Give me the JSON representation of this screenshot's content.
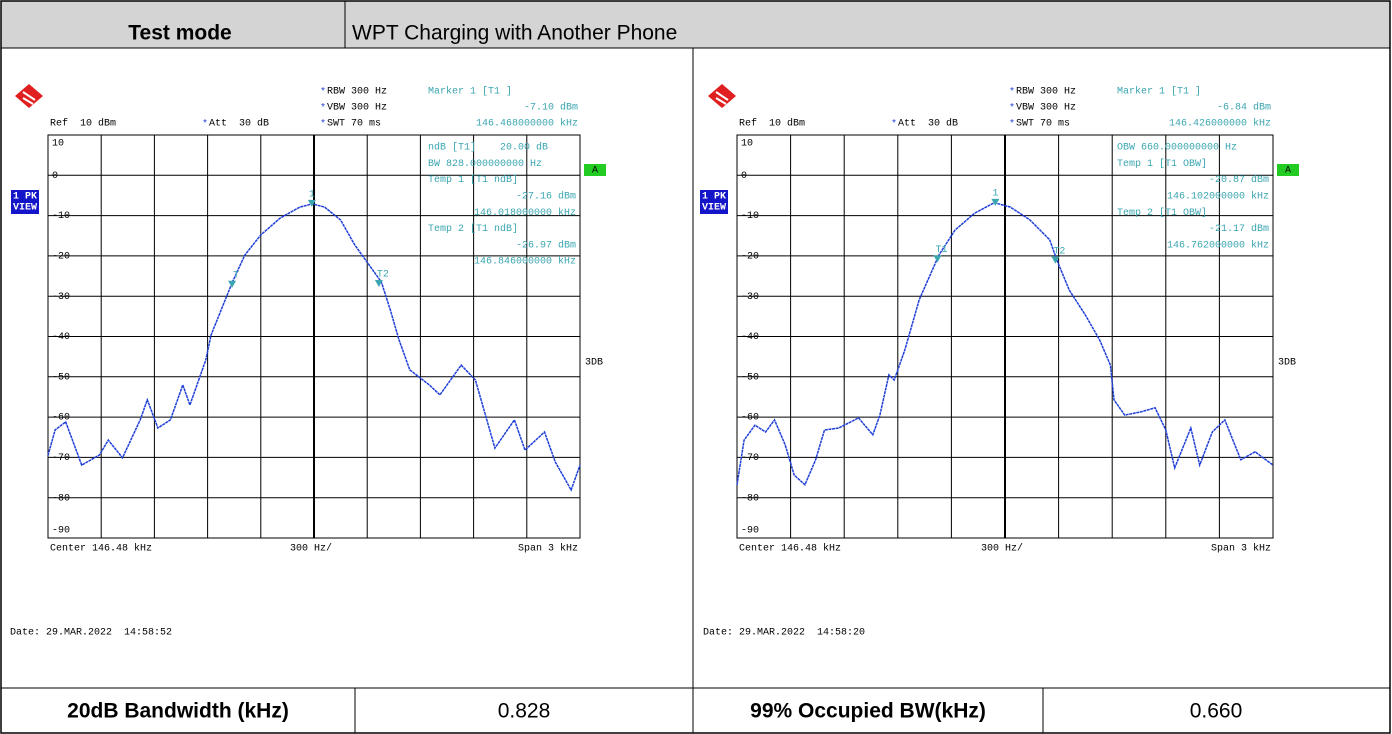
{
  "header": {
    "label": "Test mode",
    "value": "WPT Charging with Another Phone"
  },
  "plots": [
    {
      "rbw": "RBW 300 Hz",
      "vbw": "VBW 300 Hz",
      "swt": "SWT 70 ms",
      "ref": "Ref  10 dBm",
      "att": "Att  30 dB",
      "marker_title": "Marker 1 [T1 ]",
      "marker_level": "-7.10 dBm",
      "marker_freq": "146.468000000 kHz",
      "readout": [
        "ndB [T1]    20.00 dB",
        "BW 828.000000000 Hz",
        "Temp 1 [T1 ndB]",
        "-27.16 dBm",
        "146.018000000 kHz",
        "Temp 2 [T1 ndB]",
        "-26.97 dBm",
        "146.846000000 kHz"
      ],
      "trace_label": [
        "1 PK",
        "VIEW"
      ],
      "a_label": "A",
      "db_label": "3DB",
      "center": "Center 146.48 kHz",
      "div": "300 Hz/",
      "span": "Span 3 kHz",
      "date": "Date: 29.MAR.2022  14:58:52",
      "xlim": [
        144.98,
        147.98
      ],
      "ylim": [
        -90,
        10
      ],
      "yticks": [
        10,
        0,
        -10,
        -20,
        -30,
        -40,
        -50,
        -60,
        -70,
        -80,
        -90
      ],
      "trace": {
        "x": [
          144.98,
          145.02,
          145.08,
          145.17,
          145.27,
          145.32,
          145.4,
          145.5,
          145.54,
          145.6,
          145.67,
          145.74,
          145.78,
          145.87,
          145.9,
          146.02,
          146.09,
          146.18,
          146.29,
          146.4,
          146.47,
          146.54,
          146.63,
          146.71,
          146.86,
          146.91,
          146.96,
          147.02,
          147.13,
          147.19,
          147.31,
          147.39,
          147.5,
          147.61,
          147.67,
          147.78,
          147.84,
          147.93,
          147.98
        ],
        "y": [
          -69.5,
          -63.2,
          -61.2,
          -71.9,
          -69.4,
          -65.7,
          -70.1,
          -60.7,
          -55.7,
          -62.7,
          -60.7,
          -52.0,
          -57.0,
          -45.8,
          -39.6,
          -26.5,
          -19.8,
          -14.8,
          -10.6,
          -7.9,
          -7.1,
          -7.9,
          -11.1,
          -17.3,
          -26.5,
          -33.4,
          -40.9,
          -48.3,
          -52.0,
          -54.5,
          -47.1,
          -50.8,
          -67.7,
          -60.7,
          -68.2,
          -63.7,
          -71.1,
          -78.1,
          -71.9
        ]
      },
      "markers": [
        {
          "label": "1",
          "x": 146.468,
          "y": -7.1
        },
        {
          "label": "T",
          "x": 146.018,
          "y": -27.16
        },
        {
          "label": "T2",
          "x": 146.846,
          "y": -26.97
        }
      ]
    },
    {
      "rbw": "RBW 300 Hz",
      "vbw": "VBW 300 Hz",
      "swt": "SWT 70 ms",
      "ref": "Ref  10 dBm",
      "att": "Att  30 dB",
      "marker_title": "Marker 1 [T1 ]",
      "marker_level": "-6.84 dBm",
      "marker_freq": "146.426000000 kHz",
      "readout": [
        "OBW 660.000000000 Hz",
        "Temp 1 [T1 OBW]",
        "-20.87 dBm",
        "146.102000000 kHz",
        "Temp 2 [T1 OBW]",
        "-21.17 dBm",
        "146.762000000 kHz"
      ],
      "trace_label": [
        "1 PK",
        "VIEW"
      ],
      "a_label": "A",
      "db_label": "3DB",
      "center": "Center 146.48 kHz",
      "div": "300 Hz/",
      "span": "Span 3 kHz",
      "date": "Date: 29.MAR.2022  14:58:20",
      "xlim": [
        144.98,
        147.98
      ],
      "ylim": [
        -90,
        10
      ],
      "yticks": [
        10,
        0,
        -10,
        -20,
        -30,
        -40,
        -50,
        -60,
        -70,
        -80,
        -90
      ],
      "trace": {
        "x": [
          144.98,
          145.02,
          145.08,
          145.14,
          145.19,
          145.25,
          145.3,
          145.36,
          145.42,
          145.47,
          145.55,
          145.66,
          145.74,
          145.78,
          145.83,
          145.86,
          145.92,
          146.0,
          146.11,
          146.2,
          146.31,
          146.42,
          146.51,
          146.62,
          146.73,
          146.77,
          146.84,
          146.93,
          147.01,
          147.07,
          147.09,
          147.15,
          147.24,
          147.32,
          147.38,
          147.43,
          147.52,
          147.57,
          147.64,
          147.71,
          147.8,
          147.88,
          147.98
        ],
        "y": [
          -76.8,
          -65.7,
          -62.0,
          -63.7,
          -60.7,
          -66.9,
          -74.4,
          -76.8,
          -70.6,
          -63.2,
          -62.7,
          -60.2,
          -64.4,
          -59.5,
          -49.5,
          -50.8,
          -43.3,
          -30.9,
          -19.8,
          -13.6,
          -9.4,
          -6.8,
          -7.9,
          -11.1,
          -16.0,
          -21.0,
          -28.5,
          -34.7,
          -40.9,
          -47.1,
          -55.7,
          -59.5,
          -58.7,
          -57.7,
          -63.2,
          -72.6,
          -62.7,
          -71.9,
          -63.7,
          -60.7,
          -70.6,
          -68.6,
          -71.9
        ]
      },
      "markers": [
        {
          "label": "1",
          "x": 146.426,
          "y": -6.84
        },
        {
          "label": "T1",
          "x": 146.102,
          "y": -20.87
        },
        {
          "label": "T2",
          "x": 146.762,
          "y": -21.17
        }
      ]
    }
  ],
  "results": [
    {
      "label": "20dB Bandwidth (kHz)",
      "value": "0.828"
    },
    {
      "label": "99% Occupied BW(kHz)",
      "value": "0.660"
    }
  ]
}
